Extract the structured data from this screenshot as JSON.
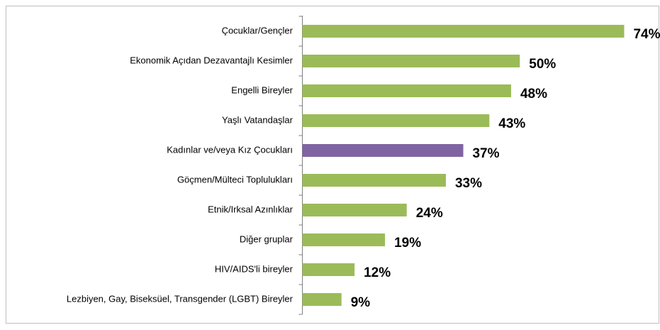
{
  "chart_data": {
    "type": "bar",
    "orientation": "horizontal",
    "categories": [
      "Çocuklar/Gençler",
      "Ekonomik Açıdan Dezavantajlı Kesimler",
      "Engelli Bireyler",
      "Yaşlı Vatandaşlar",
      "Kadınlar ve/veya Kız Çocukları",
      "Göçmen/Mülteci Toplulukları",
      "Etnik/Irksal Azınlıklar",
      "Diğer gruplar",
      "HIV/AIDS'li bireyler",
      "Lezbiyen, Gay, Biseksüel, Transgender (LGBT) Bireyler"
    ],
    "values": [
      74,
      50,
      48,
      43,
      37,
      33,
      24,
      19,
      12,
      9
    ],
    "value_labels": [
      "74%",
      "50%",
      "48%",
      "43%",
      "37%",
      "33%",
      "24%",
      "19%",
      "12%",
      "9%"
    ],
    "colors": [
      "#9bbb59",
      "#9bbb59",
      "#9bbb59",
      "#9bbb59",
      "#8064a2",
      "#9bbb59",
      "#9bbb59",
      "#9bbb59",
      "#9bbb59",
      "#9bbb59"
    ]
  }
}
